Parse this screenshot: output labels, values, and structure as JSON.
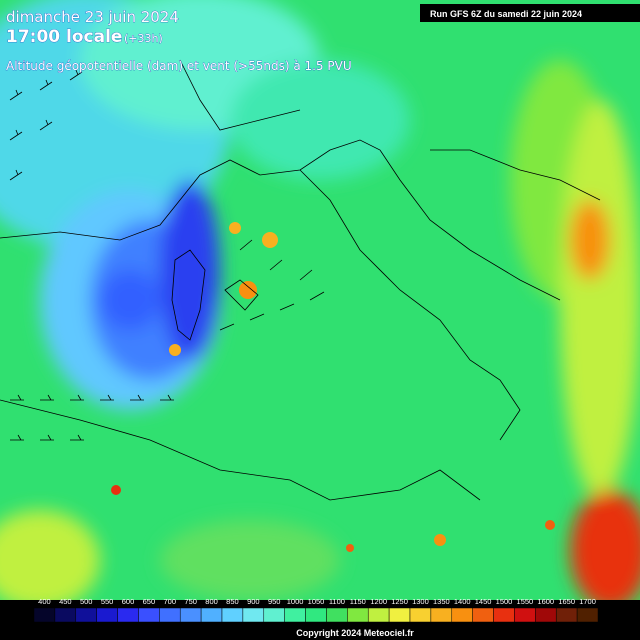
{
  "header": {
    "date": "dimanche 23 juin 2024",
    "time": "17:00 locale",
    "lead": "(+33h)",
    "product": "Altitude géopotentielle (dam) et vent (>55nds) à 1.5 PVU",
    "run": "Run GFS 6Z du samedi 22 juin 2024"
  },
  "legend": {
    "values": [
      400,
      450,
      500,
      550,
      600,
      650,
      700,
      750,
      800,
      850,
      900,
      950,
      1000,
      1050,
      1100,
      1150,
      1200,
      1250,
      1300,
      1350,
      1400,
      1450,
      1500,
      1550,
      1600,
      1650,
      1700
    ],
    "colors": [
      "#05052a",
      "#0a0a60",
      "#10109a",
      "#1a1ad0",
      "#2a2af0",
      "#3a50ff",
      "#4070ff",
      "#4a90ff",
      "#50b0ff",
      "#60d0ff",
      "#70e8f0",
      "#60f0d0",
      "#40f0a0",
      "#30e880",
      "#40e060",
      "#80e840",
      "#c0f040",
      "#f0f040",
      "#f8d030",
      "#f8b020",
      "#f89010",
      "#f06010",
      "#e83010",
      "#d01010",
      "#a00808",
      "#702008",
      "#502000"
    ]
  },
  "footer": {
    "copyright": "Copyright 2024 Meteociel.fr"
  }
}
